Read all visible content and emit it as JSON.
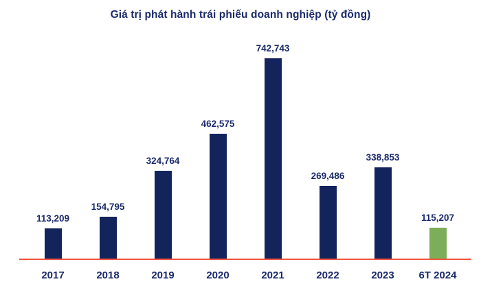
{
  "chart_data": {
    "type": "bar",
    "title": "Giá trị phát hành trái phiếu doanh nghiệp (tỷ đồng)",
    "categories": [
      "2017",
      "2018",
      "2019",
      "2020",
      "2021",
      "2022",
      "2023",
      "6T 2024"
    ],
    "values": [
      113209,
      154795,
      324764,
      462575,
      742743,
      269486,
      338853,
      115207
    ],
    "value_labels": [
      "113,209",
      "154,795",
      "324,764",
      "462,575",
      "742,743",
      "269,486",
      "338,853",
      "115,207"
    ],
    "xlabel": "",
    "ylabel": "",
    "ylim": [
      0,
      742743
    ],
    "grid": false,
    "legend": "none",
    "bar_color_default": "#13235B",
    "bar_color_highlight": "#7CAD58",
    "highlight_index": 7,
    "baseline_color": "#F1553E",
    "text_color": "#1B2A6B"
  }
}
